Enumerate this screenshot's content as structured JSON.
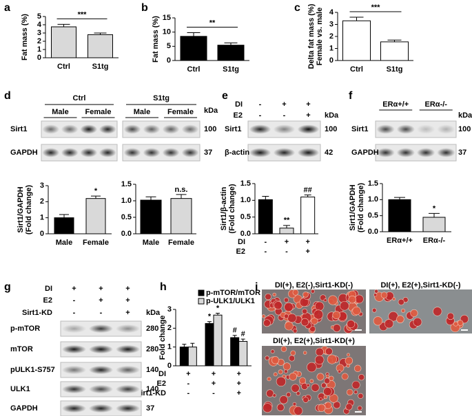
{
  "panel_labels": [
    "a",
    "b",
    "c",
    "d",
    "e",
    "f",
    "g",
    "h",
    "i"
  ],
  "chart_data": [
    {
      "type": "bar",
      "y_label": [
        "Fat mass (%)"
      ],
      "categories": [
        "Ctrl",
        "S1tg"
      ],
      "values": [
        3.75,
        2.8
      ],
      "errors": [
        0.3,
        0.2
      ],
      "colors": [
        "#d9d9d9",
        "#d9d9d9"
      ],
      "ylim": [
        0,
        5
      ],
      "yticks": [
        0,
        1,
        2,
        3,
        4,
        5
      ],
      "significance": "***"
    },
    {
      "type": "bar",
      "y_label": [
        "Fat mass (%)"
      ],
      "categories": [
        "Ctrl",
        "S1tg"
      ],
      "values": [
        8.5,
        5.4
      ],
      "errors": [
        1.3,
        0.8
      ],
      "colors": [
        "#000000",
        "#000000"
      ],
      "ylim": [
        0,
        15
      ],
      "yticks": [
        0,
        5,
        10,
        15
      ],
      "significance": "**"
    },
    {
      "type": "bar",
      "y_label": [
        "Delta fat mass (%)",
        "Female vs. male"
      ],
      "categories": [
        "Ctrl",
        "S1tg"
      ],
      "values": [
        3.3,
        1.55
      ],
      "errors": [
        0.3,
        0.15
      ],
      "colors": [
        "#ffffff",
        "#ffffff"
      ],
      "ylim": [
        0,
        4
      ],
      "yticks": [
        0,
        1,
        2,
        3,
        4
      ],
      "significance": "***"
    },
    {
      "type": "bar",
      "y_label": [
        "Sirt1/GAPDH",
        "(Fold change)"
      ],
      "categories": [
        "Male",
        "Female"
      ],
      "values": [
        1.0,
        2.2
      ],
      "errors": [
        0.2,
        0.15
      ],
      "colors": [
        "#000000",
        "#d9d9d9"
      ],
      "ylim": [
        0,
        3
      ],
      "yticks": [
        0,
        1,
        2,
        3
      ],
      "marker_labels": [
        null,
        "*"
      ]
    },
    {
      "type": "bar",
      "categories": [
        "Male",
        "Female"
      ],
      "values": [
        1.02,
        1.07
      ],
      "errors": [
        0.1,
        0.12
      ],
      "colors": [
        "#000000",
        "#d9d9d9"
      ],
      "ylim": [
        0,
        1.5
      ],
      "yticks": [
        {
          "value": 0,
          "label": "0.0"
        },
        0.5,
        {
          "value": 1,
          "label": "1.0"
        },
        1.5
      ],
      "marker_labels": [
        null,
        "n.s."
      ]
    },
    {
      "type": "bar",
      "y_label": [
        "Sirt1/β-actin",
        "(Fold change)"
      ],
      "categories": [
        null,
        null,
        null
      ],
      "conditions": [
        {
          "name": "DI",
          "signs": [
            "-",
            "+",
            "+"
          ]
        },
        {
          "name": "E2",
          "signs": [
            "-",
            "-",
            "+"
          ]
        }
      ],
      "values": [
        1.02,
        0.17,
        1.1
      ],
      "errors": [
        0.1,
        0.08,
        0.06
      ],
      "colors": [
        "#000000",
        "#d9d9d9",
        "#ffffff"
      ],
      "ylim": [
        0,
        1.5
      ],
      "yticks": [
        {
          "value": 0,
          "label": "0.0"
        },
        0.5,
        {
          "value": 1,
          "label": "1.0"
        },
        1.5
      ],
      "marker_labels": [
        null,
        "**",
        "##"
      ]
    },
    {
      "type": "bar",
      "y_label": [
        "Sirt1/GAPDH",
        "(Fold change)"
      ],
      "categories": [
        "ERα+/+",
        "ERα-/-"
      ],
      "values": [
        1.0,
        0.45
      ],
      "errors": [
        0.07,
        0.12
      ],
      "colors": [
        "#000000",
        "#d9d9d9"
      ],
      "ylim": [
        0,
        1.5
      ],
      "yticks": [
        {
          "value": 0,
          "label": "0.0"
        },
        0.5,
        {
          "value": 1,
          "label": "1.0"
        },
        1.5
      ],
      "marker_labels": [
        null,
        "*"
      ]
    },
    {
      "type": "bar",
      "y_label": [
        "Fold change"
      ],
      "categories": [
        null,
        null,
        null
      ],
      "conditions": [
        {
          "name": "DI",
          "signs": [
            "+",
            "+",
            "+"
          ]
        },
        {
          "name": "E2",
          "signs": [
            "-",
            "+",
            "+"
          ]
        },
        {
          "name": "Sirt1-KD",
          "signs": [
            "-",
            "-",
            "+"
          ]
        }
      ],
      "ylim": [
        0,
        3
      ],
      "yticks": [
        0,
        1,
        2,
        3
      ],
      "series": [
        {
          "name": "p-mTOR/mTOR",
          "color": "#000000",
          "values": [
            1.0,
            2.25,
            1.5
          ],
          "errors": [
            0.15,
            0.1,
            0.12
          ],
          "marker_labels": [
            null,
            "*",
            "#"
          ]
        },
        {
          "name": "p-ULK1/ULK1",
          "color": "#d9d9d9",
          "values": [
            1.0,
            2.7,
            1.3
          ],
          "errors": [
            0.2,
            0.1,
            0.12
          ],
          "marker_labels": [
            null,
            "*",
            "#"
          ]
        }
      ]
    }
  ],
  "blots": [
    {
      "groups": [
        "Ctrl",
        "S1tg"
      ],
      "lanes": [
        "Male",
        "Female",
        "Male",
        "Female"
      ],
      "kda_header": "kDa",
      "rows": [
        {
          "name": "Sirt1",
          "kda": 100
        },
        {
          "name": "GAPDH",
          "kda": 37
        }
      ]
    },
    {
      "conditions": [
        {
          "name": "DI",
          "signs": [
            "-",
            "+",
            "+"
          ]
        },
        {
          "name": "E2",
          "signs": [
            "-",
            "-",
            "+"
          ]
        }
      ],
      "kda_header": "kDa",
      "rows": [
        {
          "name": "Sirt1",
          "kda": 100
        },
        {
          "name": "β-actin",
          "kda": 42
        }
      ]
    },
    {
      "lanes": [
        "ERα+/+",
        "ERα-/-"
      ],
      "kda_header": "kDa",
      "rows": [
        {
          "name": "Sirt1",
          "kda": 100
        },
        {
          "name": "GAPDH",
          "kda": 37
        }
      ]
    },
    {
      "conditions": [
        {
          "name": "DI",
          "signs": [
            "+",
            "+",
            "+"
          ]
        },
        {
          "name": "E2",
          "signs": [
            "-",
            "+",
            "+"
          ]
        },
        {
          "name": "Sirt1-KD",
          "signs": [
            "-",
            "-",
            "+"
          ]
        }
      ],
      "kda_header": "kDa",
      "rows": [
        {
          "name": "p-mTOR",
          "kda": 280
        },
        {
          "name": "mTOR",
          "kda": 280
        },
        {
          "name": "pULK1-S757",
          "kda": 140
        },
        {
          "name": "ULK1",
          "kda": 140
        },
        {
          "name": "GAPDH",
          "kda": 37
        }
      ]
    }
  ],
  "micrographs": [
    {
      "caption": "DI(+), E2(-),Sirt1-KD(-)"
    },
    {
      "caption": "DI(+), E2(+),Sirt1-KD(-)"
    },
    {
      "caption": "DI(+), E2(+),Sirt1-KD(+)"
    }
  ]
}
